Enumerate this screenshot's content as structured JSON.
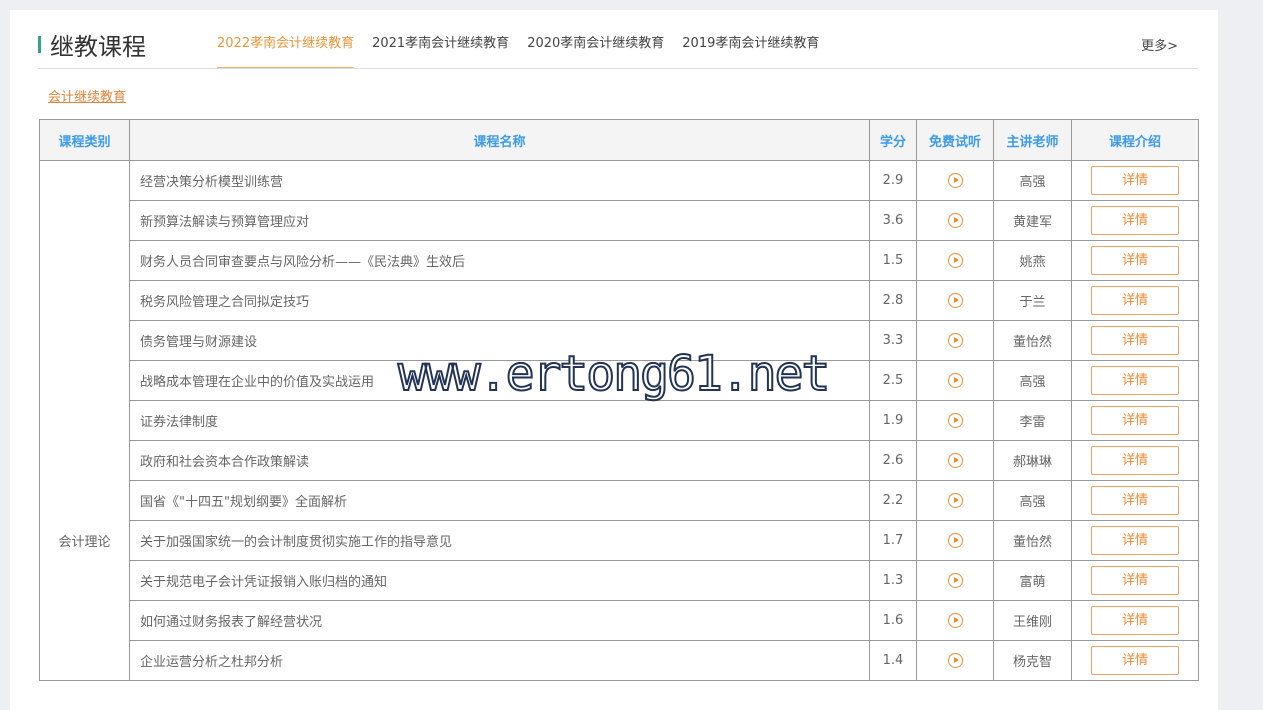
{
  "header": {
    "title": "继教课程",
    "more": "更多>",
    "tabs": [
      {
        "label": "2022孝南会计继续教育",
        "active": true
      },
      {
        "label": "2021孝南会计继续教育"
      },
      {
        "label": "2020孝南会计继续教育"
      },
      {
        "label": "2019孝南会计继续教育"
      }
    ]
  },
  "sublink": "会计继续教育",
  "table": {
    "columns": [
      "课程类别",
      "课程名称",
      "学分",
      "免费试听",
      "主讲老师",
      "课程介绍"
    ],
    "category": "会计理论",
    "detail_label": "详情",
    "rows": [
      {
        "name": "经营决策分析模型训练营",
        "credit": "2.9",
        "teacher": "高强"
      },
      {
        "name": "新预算法解读与预算管理应对",
        "credit": "3.6",
        "teacher": "黄建军"
      },
      {
        "name": "财务人员合同审查要点与风险分析——《民法典》生效后",
        "credit": "1.5",
        "teacher": "姚燕"
      },
      {
        "name": "税务风险管理之合同拟定技巧",
        "credit": "2.8",
        "teacher": "于兰"
      },
      {
        "name": "债务管理与财源建设",
        "credit": "3.3",
        "teacher": "董怡然"
      },
      {
        "name": "战略成本管理在企业中的价值及实战运用",
        "credit": "2.5",
        "teacher": "高强"
      },
      {
        "name": "证券法律制度",
        "credit": "1.9",
        "teacher": "李雷"
      },
      {
        "name": "政府和社会资本合作政策解读",
        "credit": "2.6",
        "teacher": "郝琳琳"
      },
      {
        "name": "国省《\"十四五\"规划纲要》全面解析",
        "credit": "2.2",
        "teacher": "高强"
      },
      {
        "name": "关于加强国家统一的会计制度贯彻实施工作的指导意见",
        "credit": "1.7",
        "teacher": "董怡然"
      },
      {
        "name": "关于规范电子会计凭证报销入账归档的通知",
        "credit": "1.3",
        "teacher": "富萌"
      },
      {
        "name": "如何通过财务报表了解经营状况",
        "credit": "1.6",
        "teacher": "王维刚"
      },
      {
        "name": "企业运营分析之杜邦分析",
        "credit": "1.4",
        "teacher": "杨克智"
      }
    ]
  },
  "watermark": "www.ertong61.net",
  "colors": {
    "accent": "#e8963b",
    "header_text": "#3d9be8",
    "title_bar": "#3a9e8f"
  }
}
